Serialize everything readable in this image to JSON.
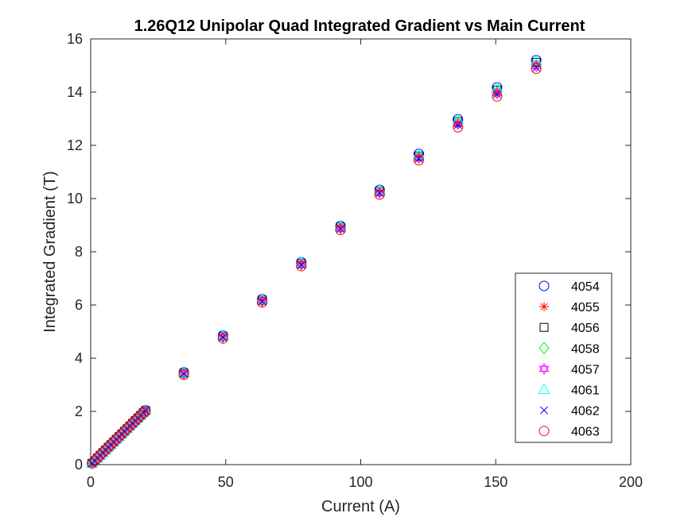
{
  "chart_data": {
    "type": "scatter",
    "title": "1.26Q12 Unipolar Quad Integrated Gradient vs Main Current",
    "xlabel": "Current (A)",
    "ylabel": "Integrated Gradient (T)",
    "xlim": [
      0,
      200
    ],
    "ylim": [
      0,
      16
    ],
    "xticks": [
      0,
      50,
      100,
      150,
      200
    ],
    "yticks": [
      0,
      2,
      4,
      6,
      8,
      10,
      12,
      14,
      16
    ],
    "grid": false,
    "legend_position": "bottom-right",
    "x": [
      0.5,
      1.5,
      2.5,
      3.5,
      4.5,
      5.5,
      6.5,
      7.5,
      8.5,
      9.5,
      10.5,
      11.5,
      12.5,
      13.5,
      14.5,
      15.5,
      16.5,
      17.5,
      18.5,
      19.5,
      20.3,
      34.5,
      49,
      63.5,
      78,
      92.5,
      107,
      121.5,
      136,
      150.5,
      165
    ],
    "series": [
      {
        "name": "4054",
        "marker": "circle",
        "color": "#0000ff",
        "values": [
          0.05,
          0.15,
          0.25,
          0.35,
          0.45,
          0.55,
          0.66,
          0.76,
          0.86,
          0.96,
          1.06,
          1.16,
          1.26,
          1.36,
          1.46,
          1.56,
          1.66,
          1.76,
          1.86,
          1.96,
          2.04,
          3.47,
          4.85,
          6.22,
          7.6,
          8.97,
          10.33,
          11.68,
          12.98,
          14.18,
          15.2
        ]
      },
      {
        "name": "4055",
        "marker": "asterisk",
        "color": "#ff0000",
        "values": [
          0.05,
          0.15,
          0.25,
          0.35,
          0.45,
          0.55,
          0.65,
          0.75,
          0.85,
          0.95,
          1.05,
          1.15,
          1.25,
          1.35,
          1.45,
          1.55,
          1.65,
          1.75,
          1.85,
          1.95,
          2.02,
          3.42,
          4.8,
          6.16,
          7.54,
          8.9,
          10.25,
          11.56,
          12.84,
          14.02,
          15.05
        ]
      },
      {
        "name": "4056",
        "marker": "square",
        "color": "#000000",
        "values": [
          0.05,
          0.15,
          0.25,
          0.35,
          0.45,
          0.55,
          0.65,
          0.75,
          0.85,
          0.95,
          1.05,
          1.15,
          1.25,
          1.35,
          1.45,
          1.55,
          1.65,
          1.75,
          1.85,
          1.95,
          2.03,
          3.44,
          4.82,
          6.18,
          7.56,
          8.93,
          10.28,
          11.6,
          12.9,
          14.08,
          15.12
        ]
      },
      {
        "name": "4058",
        "marker": "diamond",
        "color": "#00ff00",
        "values": [
          0.05,
          0.15,
          0.25,
          0.35,
          0.45,
          0.55,
          0.65,
          0.75,
          0.85,
          0.95,
          1.05,
          1.15,
          1.25,
          1.35,
          1.45,
          1.55,
          1.65,
          1.75,
          1.85,
          1.95,
          2.02,
          3.43,
          4.8,
          6.16,
          7.53,
          8.9,
          10.24,
          11.56,
          12.85,
          14.0,
          15.0
        ]
      },
      {
        "name": "4057",
        "marker": "hexagram",
        "color": "#ff00ff",
        "values": [
          0.05,
          0.15,
          0.25,
          0.35,
          0.45,
          0.55,
          0.65,
          0.75,
          0.85,
          0.95,
          1.05,
          1.15,
          1.25,
          1.35,
          1.45,
          1.55,
          1.65,
          1.75,
          1.85,
          1.95,
          2.02,
          3.42,
          4.79,
          6.15,
          7.52,
          8.88,
          10.22,
          11.53,
          12.8,
          13.96,
          14.98
        ]
      },
      {
        "name": "4061",
        "marker": "triangle",
        "color": "#00ffff",
        "values": [
          0.05,
          0.15,
          0.25,
          0.35,
          0.45,
          0.56,
          0.66,
          0.76,
          0.86,
          0.96,
          1.06,
          1.16,
          1.26,
          1.36,
          1.46,
          1.56,
          1.66,
          1.76,
          1.86,
          1.96,
          2.04,
          3.46,
          4.84,
          6.21,
          7.59,
          8.96,
          10.32,
          11.66,
          12.96,
          14.16,
          15.18
        ]
      },
      {
        "name": "4062",
        "marker": "x",
        "color": "#0000ff",
        "values": [
          0.05,
          0.15,
          0.25,
          0.35,
          0.45,
          0.55,
          0.65,
          0.75,
          0.85,
          0.95,
          1.05,
          1.15,
          1.25,
          1.35,
          1.45,
          1.55,
          1.65,
          1.75,
          1.85,
          1.95,
          2.02,
          3.41,
          4.78,
          6.13,
          7.5,
          8.86,
          10.2,
          11.5,
          12.76,
          13.92,
          14.92
        ]
      },
      {
        "name": "4063",
        "marker": "circle",
        "color": "#ff0000",
        "values": [
          0.05,
          0.15,
          0.25,
          0.35,
          0.45,
          0.55,
          0.65,
          0.75,
          0.85,
          0.95,
          1.05,
          1.15,
          1.25,
          1.35,
          1.45,
          1.54,
          1.64,
          1.74,
          1.84,
          1.94,
          2.0,
          3.38,
          4.74,
          6.1,
          7.46,
          8.82,
          10.15,
          11.44,
          12.68,
          13.84,
          14.88
        ]
      }
    ]
  }
}
